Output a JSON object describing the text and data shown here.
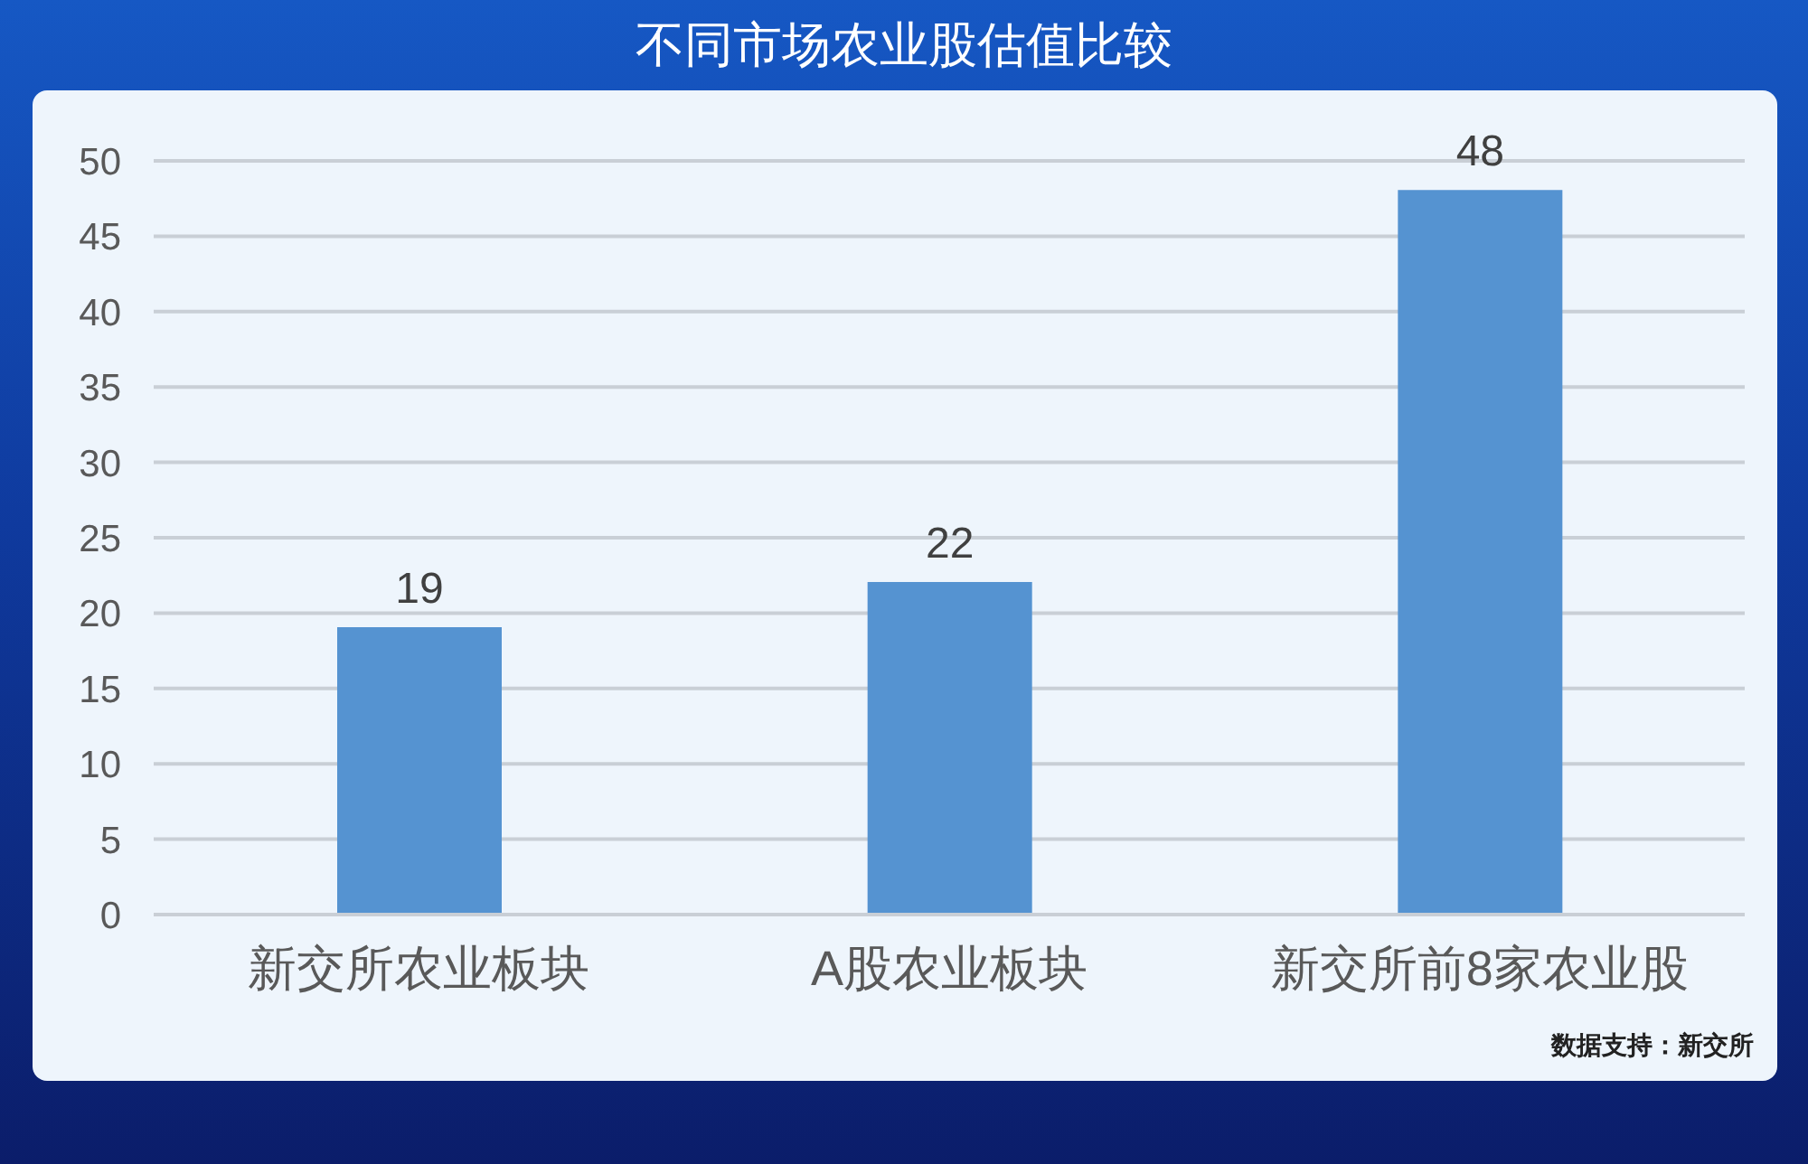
{
  "chart_data": {
    "type": "bar",
    "title": "不同市场农业股估值比较",
    "categories": [
      "新交所农业板块",
      "A股农业板块",
      "新交所前8家农业股"
    ],
    "values": [
      19,
      22,
      48
    ],
    "color": "#5593d1",
    "ylim": [
      0,
      50
    ],
    "yticks": [
      0,
      5,
      10,
      15,
      20,
      25,
      30,
      35,
      40,
      45,
      50
    ],
    "grid": "y",
    "data_labels": true,
    "annotations": [
      "数据支持：新交所"
    ]
  }
}
